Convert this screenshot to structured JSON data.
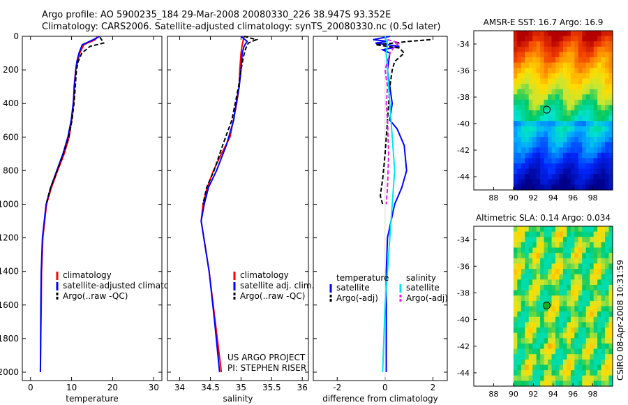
{
  "header": {
    "line1": "Argo profile: AO 5900235_184 29-Mar-2008 20080330_226 38.947S 93.352E",
    "line2": "Climatology: CARS2006. Satellite-adjusted climatology: synTS_20080330.nc (0.5d later)"
  },
  "footer": {
    "project": "US ARGO PROJECT",
    "pi": "PI: STEPHEN RISER",
    "stamp": "CSIRO 08-Apr-2008 10:31:59"
  },
  "colors": {
    "climatology": "#ff0000",
    "satellite": "#0000ff",
    "argo": "#000000",
    "satellite_diff_sal": "#00e5ee",
    "argo_diff_sal": "#e020e0",
    "marker_sst": "#ffa500",
    "marker_sla": "#22aa22"
  },
  "chart_data": [
    {
      "type": "line",
      "xlabel": "temperature",
      "ylabel": "",
      "xlim": [
        -2,
        32
      ],
      "ylim": [
        2050,
        0
      ],
      "xticks": [
        0,
        10,
        20,
        30
      ],
      "yticks": [
        0,
        200,
        400,
        600,
        800,
        1000,
        1200,
        1400,
        1600,
        1800,
        2000
      ],
      "legend": [
        "climatology",
        "satellite-adjusted climatology",
        "Argo(..raw -QC)"
      ],
      "legend_position": "lower-middle",
      "series": [
        {
          "name": "climatology",
          "color": "#ff0000",
          "x": [
            16.4,
            15.8,
            13.0,
            12.0,
            11.5,
            11.0,
            10.6,
            10.5,
            10.0,
            9.4,
            8.2,
            6.6,
            5.1,
            3.9,
            3.0,
            2.7,
            2.6,
            2.5,
            2.4
          ],
          "y": [
            0,
            20,
            50,
            100,
            150,
            200,
            300,
            400,
            500,
            600,
            700,
            800,
            900,
            1000,
            1200,
            1400,
            1600,
            1800,
            2000
          ]
        },
        {
          "name": "satellite-adjusted climatology",
          "color": "#0000ff",
          "x": [
            16.8,
            15.3,
            12.6,
            11.8,
            11.3,
            11.0,
            10.7,
            10.4,
            9.9,
            9.1,
            7.9,
            6.4,
            4.9,
            3.8,
            2.9,
            2.6,
            2.5,
            2.45,
            2.4
          ],
          "y": [
            0,
            20,
            50,
            100,
            150,
            200,
            300,
            400,
            500,
            600,
            700,
            800,
            900,
            1000,
            1200,
            1400,
            1600,
            1800,
            2000
          ]
        },
        {
          "name": "Argo(..raw -QC)",
          "color": "#000000",
          "x": [
            16.9,
            17.8,
            14.5,
            12.5,
            11.6,
            11.2,
            10.9,
            10.6,
            10.1,
            9.3,
            8.0,
            6.5,
            4.9,
            3.8
          ],
          "y": [
            5,
            40,
            60,
            100,
            150,
            200,
            300,
            400,
            500,
            600,
            700,
            800,
            900,
            1000
          ]
        }
      ]
    },
    {
      "type": "line",
      "xlabel": "salinity",
      "ylabel": "",
      "xlim": [
        33.8,
        36.1
      ],
      "ylim": [
        2050,
        0
      ],
      "xticks": [
        34,
        34.5,
        35,
        35.5,
        36
      ],
      "xticklabels": [
        "34",
        "34.5",
        "35",
        "35.5",
        "36"
      ],
      "legend": [
        "climatology",
        "satellite adj. clim.",
        "Argo(..raw -QC)"
      ],
      "legend_position": "lower-right",
      "series": [
        {
          "name": "climatology",
          "color": "#ff0000",
          "x": [
            35.05,
            35.02,
            35.0,
            34.98,
            34.97,
            34.93,
            34.82,
            34.68,
            34.55,
            34.45,
            34.38,
            34.35,
            34.48,
            34.58,
            34.68
          ],
          "y": [
            0,
            50,
            100,
            200,
            300,
            400,
            600,
            700,
            800,
            900,
            1000,
            1100,
            1400,
            1700,
            2000
          ]
        },
        {
          "name": "satellite adj. clim.",
          "color": "#0000ff",
          "x": [
            35.0,
            35.1,
            35.05,
            35.02,
            35.0,
            34.97,
            34.92,
            34.88,
            34.76,
            34.6,
            34.47,
            34.4,
            34.35,
            34.48,
            34.57,
            34.65
          ],
          "y": [
            0,
            30,
            60,
            100,
            200,
            300,
            400,
            500,
            650,
            800,
            900,
            1000,
            1100,
            1400,
            1700,
            2000
          ]
        },
        {
          "name": "Argo(..raw -QC)",
          "color": "#000000",
          "x": [
            35.05,
            35.25,
            35.12,
            35.08,
            35.04,
            35.0,
            34.96,
            34.85,
            34.7,
            34.56,
            34.44,
            34.38
          ],
          "y": [
            0,
            20,
            40,
            70,
            120,
            200,
            300,
            500,
            650,
            800,
            900,
            1000
          ]
        }
      ]
    },
    {
      "type": "line",
      "xlabel": "difference from climatology",
      "ylabel": "",
      "xlim": [
        -3,
        2.6
      ],
      "ylim": [
        2050,
        0
      ],
      "xticks": [
        -2,
        0,
        2
      ],
      "legend_position": "lower-middle",
      "legend_groups": [
        {
          "heading": "temperature",
          "entries": [
            {
              "label": "satellite",
              "color": "#0000ff"
            },
            {
              "label": "Argo(-adj)",
              "color": "#000000"
            }
          ]
        },
        {
          "heading": "salinity",
          "entries": [
            {
              "label": "satellite",
              "color": "#00e5ee"
            },
            {
              "label": "Argo(-adj)",
              "color": "#e020e0"
            }
          ]
        }
      ],
      "series": [
        {
          "name": "temperature satellite",
          "color": "#0000ff",
          "x": [
            0.2,
            -0.5,
            0.1,
            -0.4,
            0.6,
            -0.1,
            0.2,
            0.1,
            0.2,
            0.3,
            0.2,
            0.5,
            0.8,
            0.9,
            0.7,
            0.4,
            0.1,
            0.05,
            0.05,
            0.05
          ],
          "y": [
            0,
            20,
            30,
            40,
            60,
            80,
            100,
            200,
            300,
            400,
            500,
            550,
            650,
            800,
            900,
            1000,
            1200,
            1400,
            1700,
            2000
          ]
        },
        {
          "name": "temperature Argo(-adj)",
          "color": "#000000",
          "x": [
            1.9,
            1.0,
            0.4,
            -0.4,
            0.6,
            0.8,
            0.4,
            0.3,
            0.2,
            0.1,
            0.0,
            -0.1,
            -0.2,
            -0.1
          ],
          "y": [
            20,
            30,
            40,
            50,
            70,
            100,
            150,
            200,
            300,
            500,
            700,
            850,
            950,
            1000
          ]
        },
        {
          "name": "salinity satellite",
          "color": "#00e5ee",
          "x": [
            0.0,
            0.1,
            0.05,
            0.1,
            0.2,
            0.25,
            0.3,
            0.35,
            0.4,
            0.3,
            0.2,
            0.1,
            0.0,
            -0.05,
            -0.1
          ],
          "y": [
            0,
            50,
            100,
            200,
            400,
            500,
            600,
            700,
            800,
            1000,
            1200,
            1400,
            1600,
            1800,
            2000
          ]
        },
        {
          "name": "salinity Argo(-adj)",
          "color": "#e020e0",
          "x": [
            0.1,
            0.6,
            0.4,
            0.2,
            0.0,
            0.1,
            0.05,
            0.1,
            0.15,
            0.1,
            0.05
          ],
          "y": [
            20,
            40,
            60,
            100,
            200,
            300,
            400,
            500,
            700,
            900,
            1000
          ]
        }
      ]
    },
    {
      "type": "heatmap",
      "title": "AMSR-E SST: 16.7 Argo: 16.9",
      "xlim": [
        86,
        100
      ],
      "ylim": [
        -45,
        -33
      ],
      "xticks": [
        88,
        90,
        92,
        94,
        96,
        98
      ],
      "yticks": [
        -34,
        -36,
        -38,
        -40,
        -42,
        -44
      ],
      "data_extent_x": [
        90,
        100
      ],
      "marker": {
        "lon": 93.35,
        "lat": -38.95
      }
    },
    {
      "type": "heatmap",
      "title": "Altimetric SLA: 0.14 Argo: 0.034",
      "xlim": [
        86,
        100
      ],
      "ylim": [
        -45,
        -33
      ],
      "xticks": [
        88,
        90,
        92,
        94,
        96,
        98
      ],
      "yticks": [
        -34,
        -36,
        -38,
        -40,
        -42,
        -44
      ],
      "data_extent_x": [
        90,
        100
      ],
      "marker": {
        "lon": 93.35,
        "lat": -38.95
      }
    }
  ]
}
